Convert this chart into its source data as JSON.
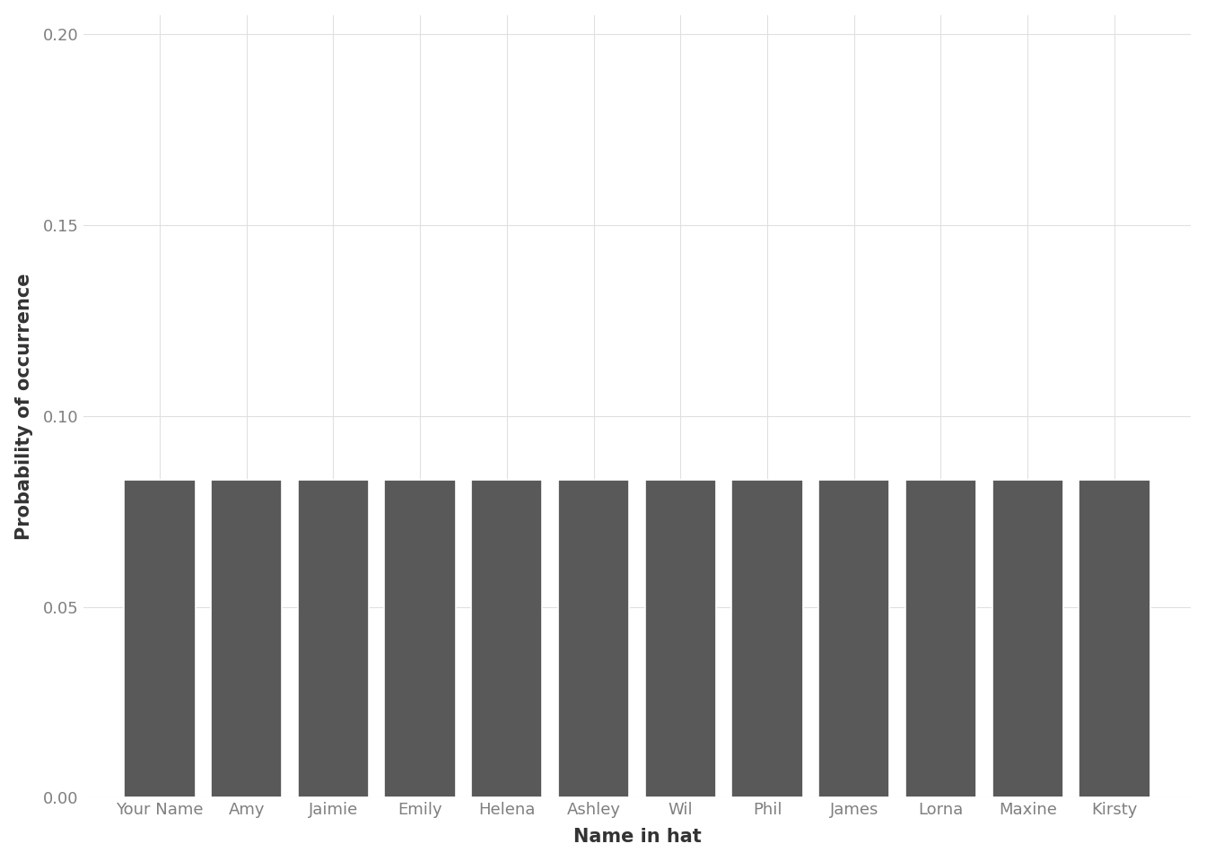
{
  "categories": [
    "Your Name",
    "Amy",
    "Jaimie",
    "Emily",
    "Helena",
    "Ashley",
    "Wil",
    "Phil",
    "James",
    "Lorna",
    "Maxine",
    "Kirsty"
  ],
  "values": [
    0.08333333,
    0.08333333,
    0.08333333,
    0.08333333,
    0.08333333,
    0.08333333,
    0.08333333,
    0.08333333,
    0.08333333,
    0.08333333,
    0.08333333,
    0.08333333
  ],
  "bar_color": "#595959",
  "bar_edge_color": "white",
  "background_color": "#ffffff",
  "plot_background_color": "#ffffff",
  "grid_color": "#e0e0e0",
  "tick_label_color": "#7f7f7f",
  "xlabel": "Name in hat",
  "ylabel": "Probability of occurrence",
  "ylim": [
    0,
    0.205
  ],
  "yticks": [
    0.0,
    0.05,
    0.1,
    0.15,
    0.2
  ],
  "xlabel_fontsize": 15,
  "ylabel_fontsize": 15,
  "tick_fontsize": 13,
  "bar_width": 0.82
}
